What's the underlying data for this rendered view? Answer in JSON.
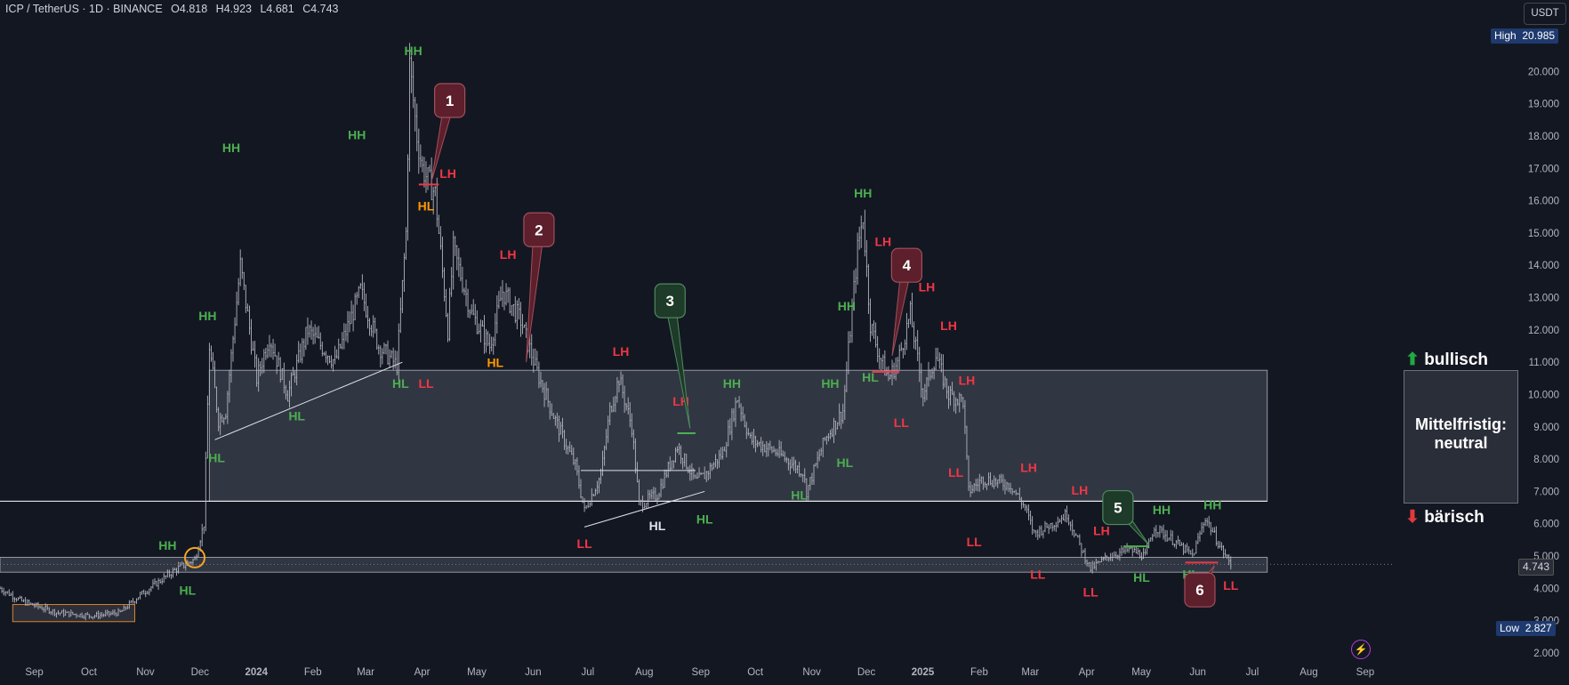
{
  "header": {
    "symbol": "ICP / TetherUS · 1D · BINANCE",
    "open": "O4.818",
    "high": "H4.923",
    "low": "L4.681",
    "close": "C4.743"
  },
  "currency_button": "USDT",
  "price_badges": {
    "high_label": "High",
    "high_value": "20.985",
    "low_label": "Low",
    "low_value": "2.827",
    "last_value": "4.743"
  },
  "colors": {
    "background": "#131722",
    "candle": "#b2b5be",
    "green": "#4caf50",
    "red": "#f23645",
    "orange": "#ff9800",
    "white": "#e0e3eb",
    "callout_red_fill": "#5c1f2b",
    "callout_green_fill": "#1e3a29"
  },
  "outlook": {
    "bullish": "bullisch",
    "bearish": "bärisch",
    "box_line1": "Mittelfristig:",
    "box_line2": "neutral",
    "bullish_icon": "arrow-up-icon",
    "bearish_icon": "arrow-down-icon"
  },
  "chart_data": {
    "type": "candlestick",
    "ylim": [
      2.0,
      21.0
    ],
    "y_ticks": [
      "20.000",
      "19.000",
      "18.000",
      "17.000",
      "16.000",
      "15.000",
      "14.000",
      "13.000",
      "12.000",
      "11.000",
      "10.000",
      "9.000",
      "8.000",
      "7.000",
      "6.000",
      "5.000",
      "4.000",
      "3.000",
      "2.000"
    ],
    "y_tick_values": [
      20,
      19,
      18,
      17,
      16,
      15,
      14,
      13,
      12,
      11,
      10,
      9,
      8,
      7,
      6,
      5,
      4,
      3,
      2
    ],
    "x_ticks": [
      "Sep",
      "Oct",
      "Nov",
      "Dec",
      "2024",
      "Feb",
      "Mar",
      "Apr",
      "May",
      "Jun",
      "Jul",
      "Aug",
      "Sep",
      "Oct",
      "Nov",
      "Dec",
      "2025",
      "Feb",
      "Mar",
      "Apr",
      "May",
      "Jun",
      "Jul",
      "Aug",
      "Sep"
    ],
    "x_tick_dates": [
      "2023-09-01",
      "2023-10-01",
      "2023-11-01",
      "2023-12-01",
      "2024-01-01",
      "2024-02-01",
      "2024-03-01",
      "2024-04-01",
      "2024-05-01",
      "2024-06-01",
      "2024-07-01",
      "2024-08-01",
      "2024-09-01",
      "2024-10-01",
      "2024-11-01",
      "2024-12-01",
      "2025-01-01",
      "2025-02-01",
      "2025-03-01",
      "2025-04-01",
      "2025-05-01",
      "2025-06-01",
      "2025-07-01",
      "2025-08-01",
      "2025-09-01"
    ],
    "x_range": [
      "2023-08-20",
      "2025-09-24"
    ],
    "price_path": [
      [
        "2023-08-20",
        4.0
      ],
      [
        "2023-09-01",
        3.6
      ],
      [
        "2023-09-20",
        3.25
      ],
      [
        "2023-10-10",
        3.15
      ],
      [
        "2023-10-25",
        3.25
      ],
      [
        "2023-11-05",
        3.8
      ],
      [
        "2023-11-25",
        4.6
      ],
      [
        "2023-12-05",
        4.9
      ],
      [
        "2023-12-10",
        6.0
      ],
      [
        "2023-12-13",
        11.5
      ],
      [
        "2023-12-18",
        9.2
      ],
      [
        "2023-12-22",
        9.5
      ],
      [
        "2023-12-30",
        14.0
      ],
      [
        "2024-01-08",
        10.5
      ],
      [
        "2024-01-15",
        11.8
      ],
      [
        "2024-01-25",
        10.0
      ],
      [
        "2024-02-05",
        12.0
      ],
      [
        "2024-02-20",
        11.0
      ],
      [
        "2024-03-05",
        13.2
      ],
      [
        "2024-03-15",
        11.5
      ],
      [
        "2024-03-25",
        10.9
      ],
      [
        "2024-03-30",
        15.0
      ],
      [
        "2024-04-01",
        20.2
      ],
      [
        "2024-04-05",
        18.0
      ],
      [
        "2024-04-08",
        17.0
      ],
      [
        "2024-04-15",
        16.2
      ],
      [
        "2024-04-22",
        12.0
      ],
      [
        "2024-04-25",
        14.5
      ],
      [
        "2024-05-05",
        12.5
      ],
      [
        "2024-05-15",
        11.5
      ],
      [
        "2024-05-22",
        13.2
      ],
      [
        "2024-06-01",
        12.3
      ],
      [
        "2024-06-10",
        10.7
      ],
      [
        "2024-06-20",
        9.2
      ],
      [
        "2024-07-01",
        7.8
      ],
      [
        "2024-07-06",
        6.4
      ],
      [
        "2024-07-15",
        7.5
      ],
      [
        "2024-07-20",
        9.5
      ],
      [
        "2024-07-25",
        10.5
      ],
      [
        "2024-08-01",
        9.0
      ],
      [
        "2024-08-05",
        6.6
      ],
      [
        "2024-08-15",
        6.9
      ],
      [
        "2024-08-26",
        8.4
      ],
      [
        "2024-09-05",
        7.3
      ],
      [
        "2024-09-10",
        7.5
      ],
      [
        "2024-09-20",
        8.2
      ],
      [
        "2024-09-28",
        9.9
      ],
      [
        "2024-10-05",
        8.6
      ],
      [
        "2024-10-20",
        8.2
      ],
      [
        "2024-11-03",
        7.6
      ],
      [
        "2024-11-05",
        7.0
      ],
      [
        "2024-11-15",
        8.6
      ],
      [
        "2024-11-25",
        9.5
      ],
      [
        "2024-12-03",
        14.5
      ],
      [
        "2024-12-06",
        15.5
      ],
      [
        "2024-12-10",
        12.2
      ],
      [
        "2024-12-15",
        11.2
      ],
      [
        "2024-12-20",
        10.5
      ],
      [
        "2024-12-25",
        11.0
      ],
      [
        "2025-01-01",
        12.5
      ],
      [
        "2025-01-08",
        10.0
      ],
      [
        "2025-01-15",
        11.2
      ],
      [
        "2025-01-22",
        10.0
      ],
      [
        "2025-01-30",
        9.8
      ],
      [
        "2025-02-02",
        7.0
      ],
      [
        "2025-02-10",
        7.4
      ],
      [
        "2025-02-25",
        7.2
      ],
      [
        "2025-03-05",
        6.5
      ],
      [
        "2025-03-10",
        5.7
      ],
      [
        "2025-03-20",
        6.0
      ],
      [
        "2025-03-28",
        6.3
      ],
      [
        "2025-04-05",
        5.2
      ],
      [
        "2025-04-10",
        4.6
      ],
      [
        "2025-04-20",
        5.0
      ],
      [
        "2025-05-01",
        5.2
      ],
      [
        "2025-05-10",
        5.0
      ],
      [
        "2025-05-15",
        5.9
      ],
      [
        "2025-05-25",
        5.5
      ],
      [
        "2025-06-05",
        5.0
      ],
      [
        "2025-06-12",
        6.2
      ],
      [
        "2025-06-20",
        5.3
      ],
      [
        "2025-06-26",
        4.74
      ]
    ],
    "zones": [
      {
        "name": "consolidation-zone",
        "y_top": 10.75,
        "y_bottom": 6.7,
        "x_start": "2023-12-13",
        "x_end": "2025-07-16"
      },
      {
        "name": "support-zone",
        "y_top": 4.96,
        "y_bottom": 4.5,
        "x_start": "2023-08-20",
        "x_end": "2025-07-16"
      },
      {
        "name": "accumulation-zone",
        "y_top": 3.5,
        "y_bottom": 2.97,
        "x_start": "2023-08-27",
        "x_end": "2023-11-02"
      }
    ],
    "support_line": {
      "y": 6.7,
      "x_start": "2023-08-20",
      "x_end": "2025-07-16"
    },
    "lines": [
      {
        "color": "white",
        "points": [
          [
            "2023-12-16",
            8.6
          ],
          [
            "2024-03-28",
            11.0
          ]
        ]
      },
      {
        "color": "white",
        "points": [
          [
            "2024-07-06",
            5.9
          ],
          [
            "2024-09-10",
            7.0
          ]
        ]
      },
      {
        "color": "white",
        "points": [
          [
            "2024-07-04",
            7.65
          ],
          [
            "2024-09-05",
            7.65
          ]
        ]
      },
      {
        "color": "green",
        "points": [
          [
            "2024-08-26",
            8.8
          ],
          [
            "2024-09-05",
            8.8
          ]
        ]
      },
      {
        "color": "red",
        "points": [
          [
            "2024-04-06",
            16.5
          ],
          [
            "2024-04-17",
            16.5
          ]
        ]
      },
      {
        "color": "red",
        "points": [
          [
            "2024-12-11",
            10.7
          ],
          [
            "2024-12-26",
            10.7
          ]
        ]
      },
      {
        "color": "green",
        "points": [
          [
            "2025-04-28",
            5.3
          ],
          [
            "2025-05-12",
            5.3
          ]
        ]
      },
      {
        "color": "red",
        "points": [
          [
            "2025-06-01",
            4.8
          ],
          [
            "2025-06-19",
            4.8
          ]
        ]
      }
    ],
    "swing_labels": [
      {
        "t": "HH",
        "c": "green",
        "d": "2024-04-03",
        "y": 20.5
      },
      {
        "t": "HH",
        "c": "green",
        "d": "2023-12-25",
        "y": 17.5
      },
      {
        "t": "HH",
        "c": "green",
        "d": "2024-03-03",
        "y": 17.9
      },
      {
        "t": "HH",
        "c": "green",
        "d": "2023-12-12",
        "y": 12.3
      },
      {
        "t": "HH",
        "c": "green",
        "d": "2023-11-20",
        "y": 5.2
      },
      {
        "t": "HL",
        "c": "green",
        "d": "2023-12-01",
        "y": 3.8
      },
      {
        "t": "HL",
        "c": "green",
        "d": "2023-12-17",
        "y": 7.9
      },
      {
        "t": "HL",
        "c": "green",
        "d": "2024-01-30",
        "y": 9.2
      },
      {
        "t": "HL",
        "c": "green",
        "d": "2024-03-27",
        "y": 10.2
      },
      {
        "t": "HL",
        "c": "orange",
        "d": "2024-04-10",
        "y": 15.7
      },
      {
        "t": "LH",
        "c": "red",
        "d": "2024-04-22",
        "y": 16.7
      },
      {
        "t": "LL",
        "c": "red",
        "d": "2024-04-10",
        "y": 10.2
      },
      {
        "t": "LH",
        "c": "red",
        "d": "2024-05-25",
        "y": 14.2
      },
      {
        "t": "HL",
        "c": "orange",
        "d": "2024-05-18",
        "y": 10.85
      },
      {
        "t": "LH",
        "c": "red",
        "d": "2024-07-26",
        "y": 11.2
      },
      {
        "t": "LL",
        "c": "red",
        "d": "2024-07-06",
        "y": 5.25
      },
      {
        "t": "HL",
        "c": "white",
        "d": "2024-08-15",
        "y": 5.8
      },
      {
        "t": "LH",
        "c": "red",
        "d": "2024-08-28",
        "y": 9.65
      },
      {
        "t": "HL",
        "c": "green",
        "d": "2024-09-10",
        "y": 6.0
      },
      {
        "t": "HH",
        "c": "green",
        "d": "2024-09-25",
        "y": 10.2
      },
      {
        "t": "HL",
        "c": "green",
        "d": "2024-11-01",
        "y": 6.75
      },
      {
        "t": "HH",
        "c": "green",
        "d": "2024-11-18",
        "y": 10.2
      },
      {
        "t": "HL",
        "c": "green",
        "d": "2024-11-26",
        "y": 7.75
      },
      {
        "t": "HH",
        "c": "green",
        "d": "2024-11-27",
        "y": 12.6
      },
      {
        "t": "HH",
        "c": "green",
        "d": "2024-12-06",
        "y": 16.1
      },
      {
        "t": "HL",
        "c": "green",
        "d": "2024-12-10",
        "y": 10.4
      },
      {
        "t": "LH",
        "c": "red",
        "d": "2024-12-17",
        "y": 14.6
      },
      {
        "t": "LL",
        "c": "red",
        "d": "2024-12-27",
        "y": 9.0
      },
      {
        "t": "LH",
        "c": "red",
        "d": "2025-01-10",
        "y": 13.2
      },
      {
        "t": "LH",
        "c": "red",
        "d": "2025-01-22",
        "y": 12.0
      },
      {
        "t": "LH",
        "c": "red",
        "d": "2025-02-01",
        "y": 10.3
      },
      {
        "t": "LL",
        "c": "red",
        "d": "2025-01-26",
        "y": 7.45
      },
      {
        "t": "LL",
        "c": "red",
        "d": "2025-02-05",
        "y": 5.3
      },
      {
        "t": "LH",
        "c": "red",
        "d": "2025-03-07",
        "y": 7.6
      },
      {
        "t": "LL",
        "c": "red",
        "d": "2025-03-12",
        "y": 4.3
      },
      {
        "t": "LH",
        "c": "red",
        "d": "2025-04-04",
        "y": 6.9
      },
      {
        "t": "LL",
        "c": "red",
        "d": "2025-04-10",
        "y": 3.75
      },
      {
        "t": "LH",
        "c": "red",
        "d": "2025-04-16",
        "y": 5.65
      },
      {
        "t": "HL",
        "c": "green",
        "d": "2025-05-08",
        "y": 4.2
      },
      {
        "t": "HH",
        "c": "green",
        "d": "2025-05-19",
        "y": 6.3
      },
      {
        "t": "HL",
        "c": "green",
        "d": "2025-06-04",
        "y": 4.3
      },
      {
        "t": "HH",
        "c": "green",
        "d": "2025-06-16",
        "y": 6.45
      },
      {
        "t": "LL",
        "c": "red",
        "d": "2025-06-26",
        "y": 3.95
      }
    ],
    "callouts": [
      {
        "n": "1",
        "c": "red",
        "box": [
          "2024-04-23",
          19.1
        ],
        "tip": [
          "2024-04-13",
          16.6
        ]
      },
      {
        "n": "2",
        "c": "red",
        "box": [
          "2024-06-11",
          15.1
        ],
        "tip": [
          "2024-06-04",
          11.0
        ]
      },
      {
        "n": "3",
        "c": "green",
        "box": [
          "2024-08-22",
          12.9
        ],
        "tip": [
          "2024-09-02",
          8.95
        ]
      },
      {
        "n": "4",
        "c": "red",
        "box": [
          "2024-12-30",
          14.0
        ],
        "tip": [
          "2024-12-22",
          11.2
        ]
      },
      {
        "n": "5",
        "c": "green",
        "box": [
          "2025-04-25",
          6.5
        ],
        "tip": [
          "2025-05-12",
          5.35
        ]
      },
      {
        "n": "6",
        "c": "red",
        "box": [
          "2025-06-09",
          3.95
        ],
        "tip": [
          "2025-06-17",
          4.7
        ]
      }
    ],
    "marker_circle": {
      "d": "2023-12-05",
      "y": 4.95
    }
  }
}
